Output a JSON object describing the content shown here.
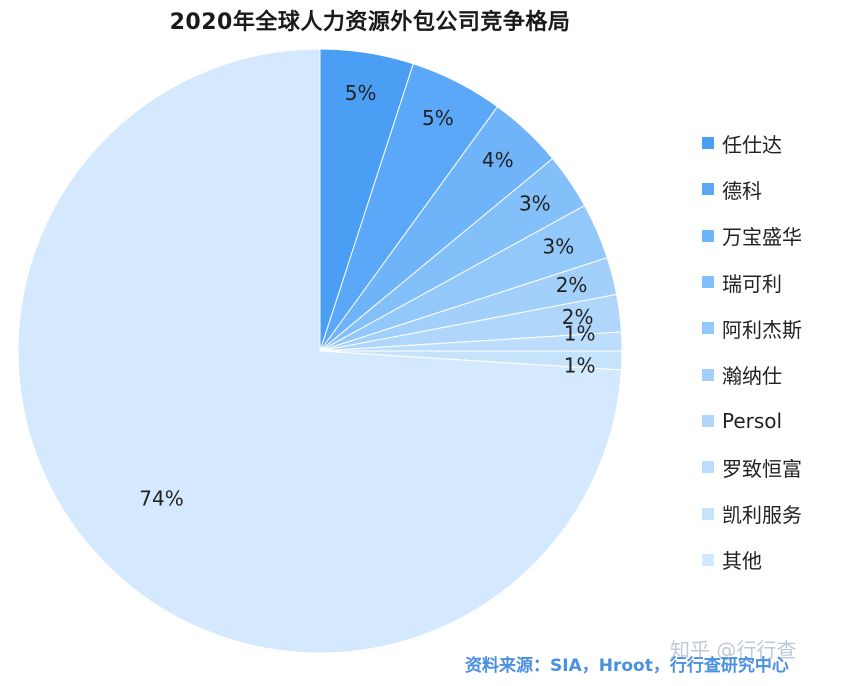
{
  "chart_data": {
    "type": "pie",
    "title": "2020年全球人力资源外包公司竞争格局",
    "slices": [
      {
        "name": "任仕达",
        "value": 5,
        "label": "5%",
        "color": "#4a9ff5"
      },
      {
        "name": "德科",
        "value": 5,
        "label": "5%",
        "color": "#5aa8f7"
      },
      {
        "name": "万宝盛华",
        "value": 4,
        "label": "4%",
        "color": "#6fb4f8"
      },
      {
        "name": "瑞可利",
        "value": 3,
        "label": "3%",
        "color": "#83bff9"
      },
      {
        "name": "阿利杰斯",
        "value": 3,
        "label": "3%",
        "color": "#93c8fa"
      },
      {
        "name": "瀚纳仕",
        "value": 2,
        "label": "2%",
        "color": "#a3d0fb"
      },
      {
        "name": "Persol",
        "value": 2,
        "label": "2%",
        "color": "#b0d7fb"
      },
      {
        "name": "罗致恒富",
        "value": 1,
        "label": "1%",
        "color": "#bcdefc"
      },
      {
        "name": "凯利服务",
        "value": 1,
        "label": "1%",
        "color": "#c6e3fc"
      },
      {
        "name": "其他",
        "value": 74,
        "label": "74%",
        "color": "#d4e9fd"
      }
    ],
    "legend_position": "right"
  },
  "footer": {
    "source": "资料来源：SIA，Hroot，行行查研究中心",
    "watermark": "知乎 @行行查"
  }
}
